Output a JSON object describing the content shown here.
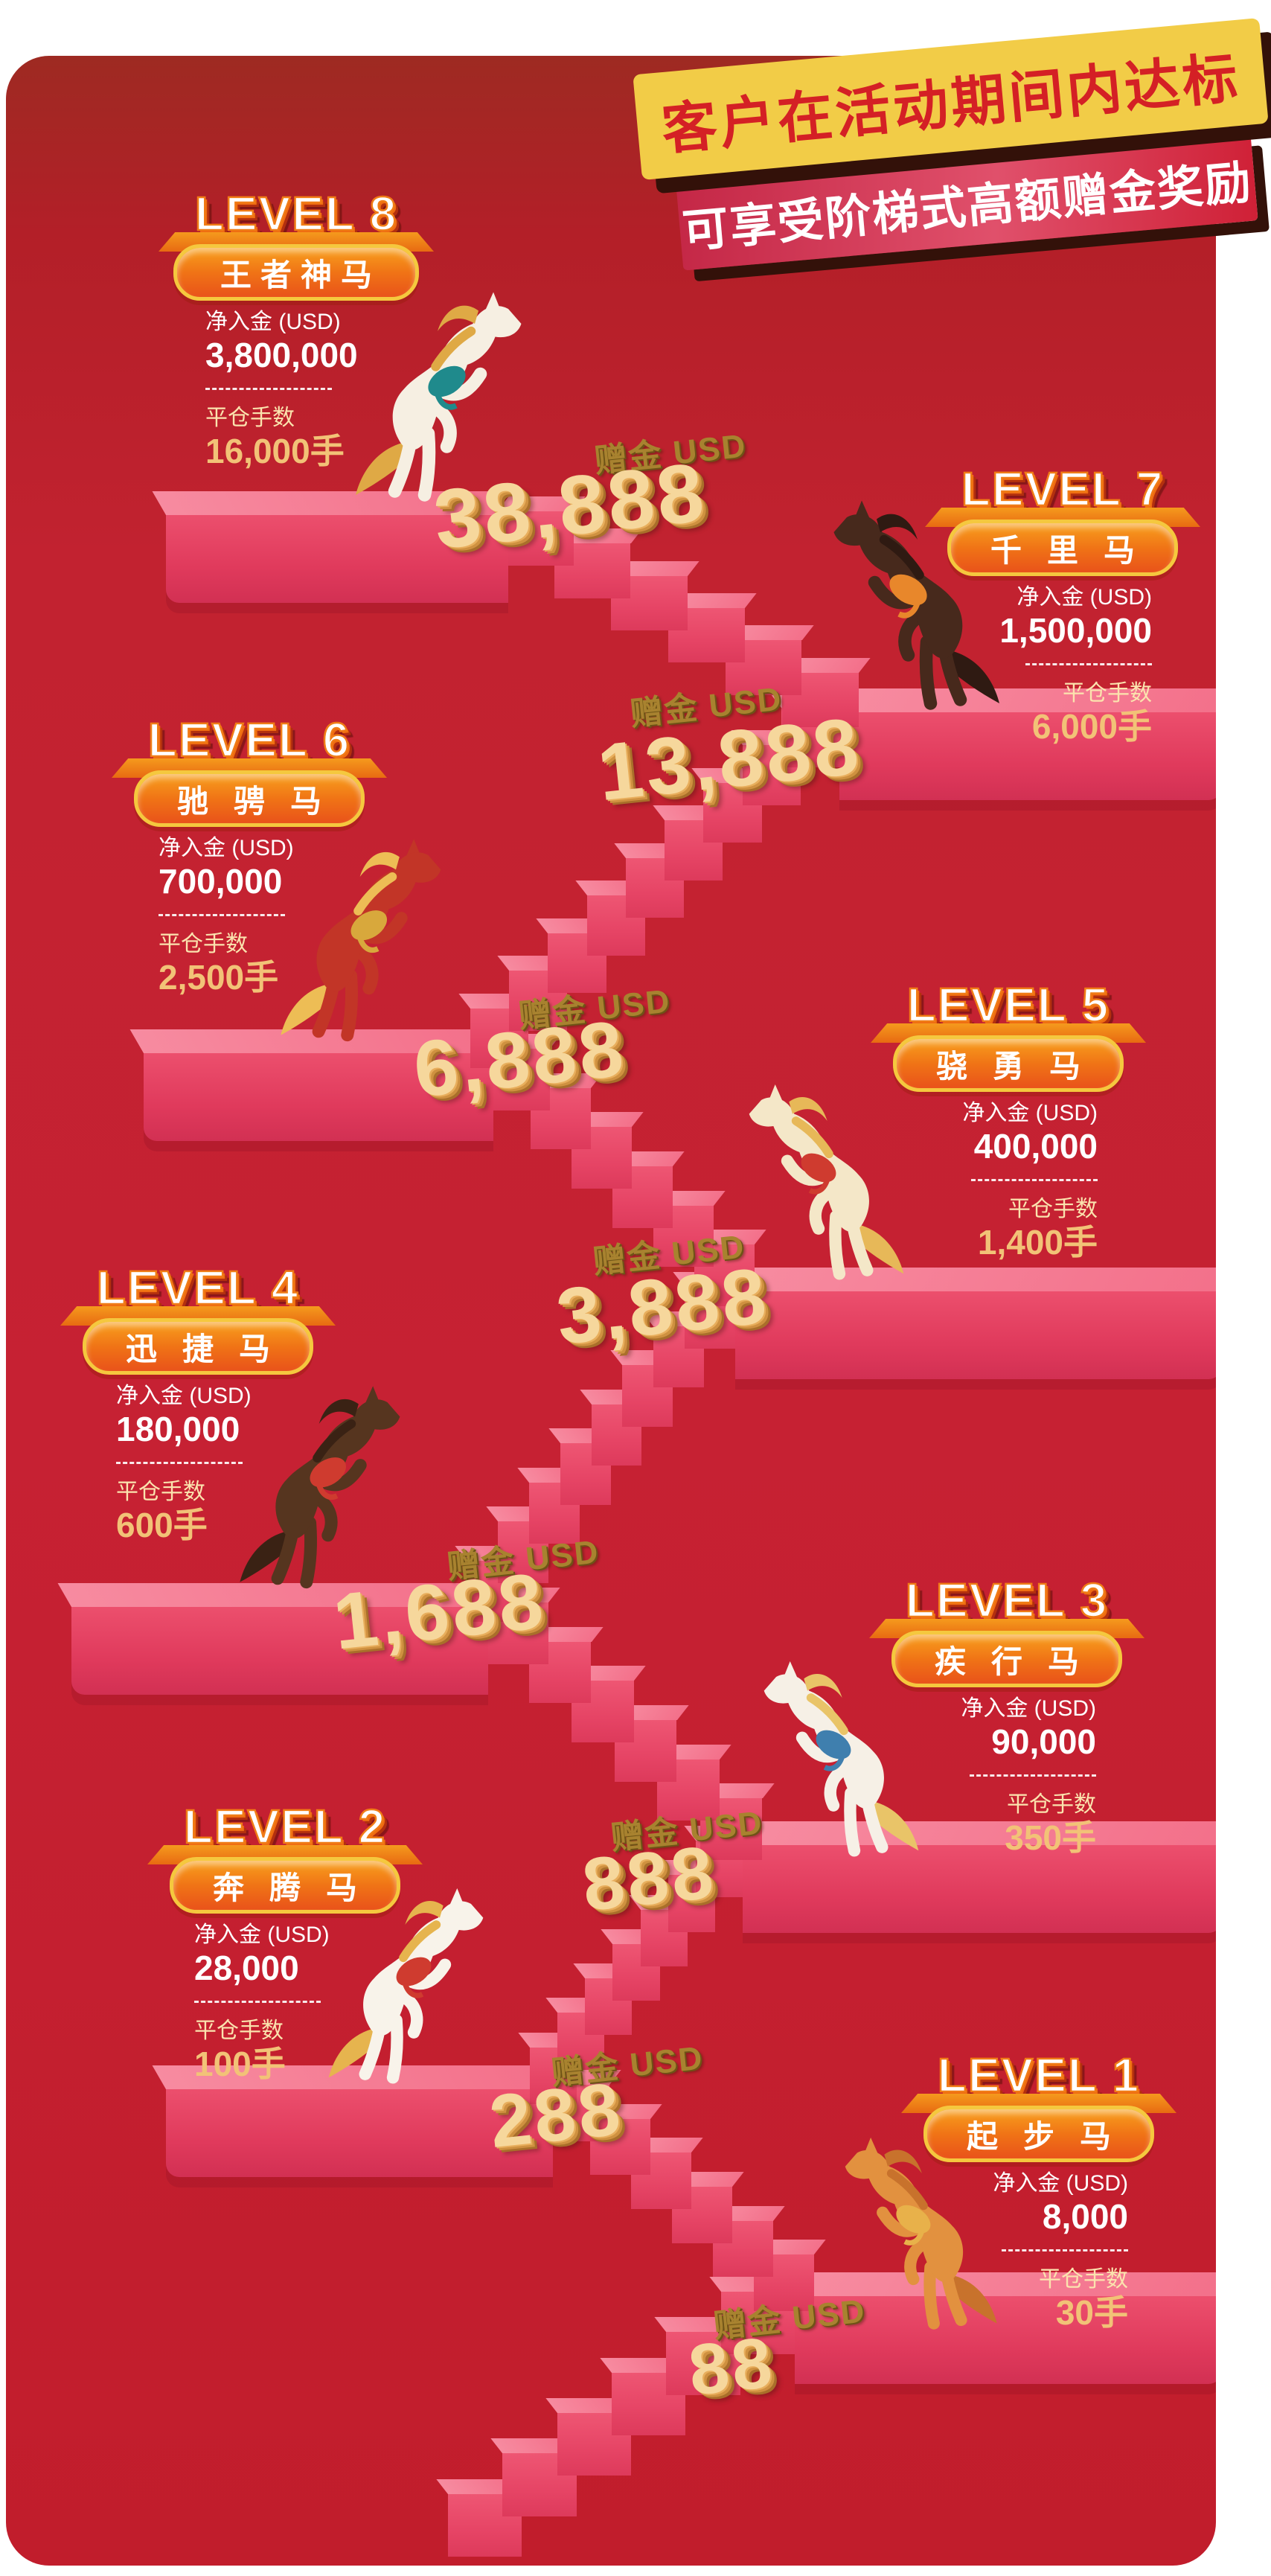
{
  "banners": {
    "line1": "客户在活动期间内达标",
    "line2": "可享受阶梯式高额赠金奖励",
    "line1_bg": "#f2cc47",
    "line1_color": "#d42025",
    "line2_color": "#ffffff"
  },
  "labels": {
    "deposit": "净入金 (USD)",
    "lots": "平仓手数",
    "bonus_prefix": "赠金 USD"
  },
  "colors": {
    "card_red": "#c41f2e",
    "card_red_dark": "#9e2a22",
    "stair_top": "#f3708a",
    "stair_front": "#e64465",
    "badge_orange": "#f07416",
    "badge_border": "#f5c83e",
    "gold_text": "#f2c277",
    "gold_3d": "#f6d79c"
  },
  "levels": [
    {
      "level": "LEVEL 8",
      "name": "王者神马",
      "deposit": "3,800,000",
      "lots": "16,000手",
      "bonus": "38,888",
      "horse": {
        "body": "#f6efe2",
        "mane": "#dfa945",
        "saddle": "#1f8a8c"
      }
    },
    {
      "level": "LEVEL 7",
      "name": "千里马",
      "deposit": "1,500,000",
      "lots": "6,000手",
      "bonus": "13,888",
      "horse": {
        "body": "#47291c",
        "mane": "#2f1a12",
        "saddle": "#e8872b"
      }
    },
    {
      "level": "LEVEL 6",
      "name": "驰骋马",
      "deposit": "700,000",
      "lots": "2,500手",
      "bonus": "6,888",
      "horse": {
        "body": "#c23527",
        "mane": "#edbd55",
        "saddle": "#d8a83c"
      }
    },
    {
      "level": "LEVEL 5",
      "name": "骁勇马",
      "deposit": "400,000",
      "lots": "1,400手",
      "bonus": "3,888",
      "horse": {
        "body": "#f4e7c8",
        "mane": "#e7b858",
        "saddle": "#cf3b2f"
      }
    },
    {
      "level": "LEVEL 4",
      "name": "迅捷马",
      "deposit": "180,000",
      "lots": "600手",
      "bonus": "1,688",
      "horse": {
        "body": "#56351f",
        "mane": "#3a2214",
        "saddle": "#cf3b2f"
      }
    },
    {
      "level": "LEVEL 3",
      "name": "疾行马",
      "deposit": "90,000",
      "lots": "350手",
      "bonus": "888",
      "horse": {
        "body": "#f6f0e6",
        "mane": "#e9c468",
        "saddle": "#3f7fae"
      }
    },
    {
      "level": "LEVEL 2",
      "name": "奔腾马",
      "deposit": "28,000",
      "lots": "100手",
      "bonus": "288",
      "horse": {
        "body": "#f8f3ea",
        "mane": "#e6b44e",
        "saddle": "#cf3b2f"
      }
    },
    {
      "level": "LEVEL 1",
      "name": "起步马",
      "deposit": "8,000",
      "lots": "30手",
      "bonus": "88",
      "horse": {
        "body": "#e2913f",
        "mane": "#c8722c",
        "saddle": "#e8b14a"
      }
    }
  ]
}
